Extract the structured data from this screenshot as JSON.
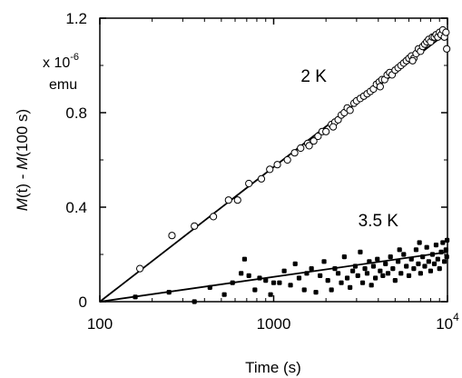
{
  "chart_data": {
    "type": "scatter",
    "title": "",
    "xlabel": "Time (s)",
    "ylabel_parts": [
      "M",
      "(t) - ",
      "M",
      "(100 s)"
    ],
    "x_scale": "log",
    "xlim": [
      100,
      10000
    ],
    "ylim": [
      0,
      1.2
    ],
    "x_ticks": [
      100,
      1000,
      10000
    ],
    "x_tick_labels": [
      {
        "base": "100",
        "sup": ""
      },
      {
        "base": "1000",
        "sup": ""
      },
      {
        "base": "10",
        "sup": "4"
      }
    ],
    "y_ticks": [
      0,
      0.4,
      0.8,
      1.2
    ],
    "y_tick_labels": [
      "0",
      "0.4",
      "0.8",
      "1.2"
    ],
    "y_unit": {
      "prefix": "x 10",
      "exponent": "-6",
      "unit": "emu"
    },
    "grid": false,
    "annotations": [
      {
        "text": "2 K",
        "x": 1700,
        "y": 0.93
      },
      {
        "text": "3.5 K",
        "x": 4000,
        "y": 0.32
      }
    ],
    "series": [
      {
        "label": "2 K",
        "marker": "open-circle",
        "fit_line": {
          "x": [
            100,
            10000
          ],
          "y": [
            0,
            1.14
          ]
        },
        "points": [
          [
            170,
            0.14
          ],
          [
            260,
            0.28
          ],
          [
            350,
            0.32
          ],
          [
            450,
            0.36
          ],
          [
            550,
            0.43
          ],
          [
            620,
            0.43
          ],
          [
            720,
            0.5
          ],
          [
            850,
            0.52
          ],
          [
            950,
            0.56
          ],
          [
            1050,
            0.58
          ],
          [
            1200,
            0.6
          ],
          [
            1320,
            0.63
          ],
          [
            1430,
            0.65
          ],
          [
            1570,
            0.67
          ],
          [
            1700,
            0.68
          ],
          [
            1800,
            0.7
          ],
          [
            1900,
            0.72
          ],
          [
            2000,
            0.72
          ],
          [
            2150,
            0.75
          ],
          [
            2250,
            0.76
          ],
          [
            2350,
            0.77
          ],
          [
            2450,
            0.79
          ],
          [
            2550,
            0.8
          ],
          [
            2650,
            0.82
          ],
          [
            2750,
            0.81
          ],
          [
            2900,
            0.84
          ],
          [
            3000,
            0.85
          ],
          [
            3150,
            0.86
          ],
          [
            3300,
            0.87
          ],
          [
            3450,
            0.88
          ],
          [
            3600,
            0.89
          ],
          [
            3750,
            0.9
          ],
          [
            3900,
            0.92
          ],
          [
            4050,
            0.93
          ],
          [
            4200,
            0.94
          ],
          [
            4350,
            0.94
          ],
          [
            4500,
            0.96
          ],
          [
            4650,
            0.97
          ],
          [
            4800,
            0.96
          ],
          [
            5000,
            0.98
          ],
          [
            5200,
            0.99
          ],
          [
            5400,
            1.0
          ],
          [
            5600,
            1.01
          ],
          [
            5800,
            1.02
          ],
          [
            6000,
            1.03
          ],
          [
            6200,
            1.04
          ],
          [
            6400,
            1.03
          ],
          [
            6600,
            1.05
          ],
          [
            6800,
            1.07
          ],
          [
            7000,
            1.06
          ],
          [
            7200,
            1.08
          ],
          [
            7400,
            1.09
          ],
          [
            7600,
            1.1
          ],
          [
            7800,
            1.11
          ],
          [
            8000,
            1.1
          ],
          [
            8200,
            1.12
          ],
          [
            8400,
            1.12
          ],
          [
            8600,
            1.13
          ],
          [
            8800,
            1.12
          ],
          [
            9000,
            1.14
          ],
          [
            9200,
            1.13
          ],
          [
            9400,
            1.15
          ],
          [
            9600,
            1.12
          ],
          [
            9800,
            1.14
          ],
          [
            9900,
            1.07
          ],
          [
            6300,
            1.02
          ],
          [
            4100,
            0.91
          ],
          [
            2200,
            0.74
          ],
          [
            1600,
            0.66
          ]
        ]
      },
      {
        "label": "3.5 K",
        "marker": "filled-circle",
        "fit_line": {
          "x": [
            100,
            10000
          ],
          "y": [
            0,
            0.21
          ]
        },
        "points": [
          [
            160,
            0.02
          ],
          [
            250,
            0.04
          ],
          [
            350,
            0.0
          ],
          [
            430,
            0.06
          ],
          [
            520,
            0.03
          ],
          [
            580,
            0.08
          ],
          [
            650,
            0.12
          ],
          [
            680,
            0.18
          ],
          [
            720,
            0.11
          ],
          [
            780,
            0.05
          ],
          [
            830,
            0.1
          ],
          [
            900,
            0.09
          ],
          [
            960,
            0.03
          ],
          [
            1000,
            0.08
          ],
          [
            1080,
            0.08
          ],
          [
            1150,
            0.13
          ],
          [
            1250,
            0.07
          ],
          [
            1330,
            0.16
          ],
          [
            1400,
            0.1
          ],
          [
            1500,
            0.05
          ],
          [
            1550,
            0.12
          ],
          [
            1650,
            0.14
          ],
          [
            1750,
            0.04
          ],
          [
            1850,
            0.11
          ],
          [
            1950,
            0.17
          ],
          [
            2050,
            0.09
          ],
          [
            2150,
            0.05
          ],
          [
            2250,
            0.14
          ],
          [
            2350,
            0.12
          ],
          [
            2450,
            0.08
          ],
          [
            2550,
            0.19
          ],
          [
            2650,
            0.1
          ],
          [
            2750,
            0.06
          ],
          [
            2850,
            0.13
          ],
          [
            2950,
            0.15
          ],
          [
            3050,
            0.11
          ],
          [
            3150,
            0.21
          ],
          [
            3250,
            0.08
          ],
          [
            3350,
            0.14
          ],
          [
            3450,
            0.12
          ],
          [
            3550,
            0.17
          ],
          [
            3650,
            0.07
          ],
          [
            3750,
            0.15
          ],
          [
            3850,
            0.1
          ],
          [
            3950,
            0.18
          ],
          [
            4100,
            0.13
          ],
          [
            4250,
            0.11
          ],
          [
            4400,
            0.16
          ],
          [
            4550,
            0.12
          ],
          [
            4700,
            0.19
          ],
          [
            4850,
            0.14
          ],
          [
            5000,
            0.09
          ],
          [
            5200,
            0.17
          ],
          [
            5400,
            0.12
          ],
          [
            5600,
            0.2
          ],
          [
            5800,
            0.15
          ],
          [
            6000,
            0.11
          ],
          [
            6200,
            0.18
          ],
          [
            6400,
            0.14
          ],
          [
            6600,
            0.22
          ],
          [
            6800,
            0.16
          ],
          [
            7000,
            0.12
          ],
          [
            7200,
            0.19
          ],
          [
            7400,
            0.15
          ],
          [
            7600,
            0.23
          ],
          [
            7800,
            0.17
          ],
          [
            8000,
            0.13
          ],
          [
            8200,
            0.2
          ],
          [
            8400,
            0.16
          ],
          [
            8600,
            0.24
          ],
          [
            8800,
            0.18
          ],
          [
            9000,
            0.14
          ],
          [
            9200,
            0.21
          ],
          [
            9400,
            0.25
          ],
          [
            9600,
            0.17
          ],
          [
            9800,
            0.22
          ],
          [
            9900,
            0.19
          ],
          [
            9950,
            0.26
          ],
          [
            5300,
            0.22
          ],
          [
            6900,
            0.25
          ]
        ]
      }
    ]
  }
}
